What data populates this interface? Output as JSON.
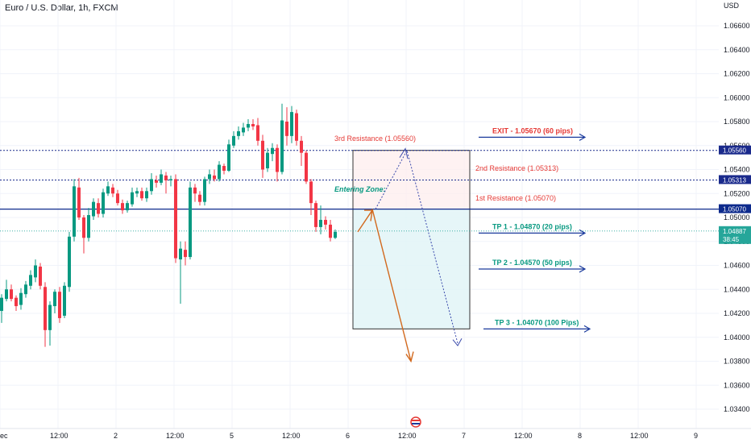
{
  "header": {
    "symbol_title": "Euro / U.S. Dollar, 1h, FXCM",
    "currency": "USD"
  },
  "chart_data": {
    "type": "candlestick",
    "ylim": [
      1.033,
      1.067
    ],
    "y_ticks": [
      "1.06600",
      "1.06400",
      "1.06200",
      "1.06000",
      "1.05800",
      "1.05600",
      "1.05400",
      "1.05200",
      "1.05000",
      "1.04800",
      "1.04600",
      "1.04400",
      "1.04200",
      "1.04000",
      "1.03800",
      "1.03600",
      "1.03400"
    ],
    "x_ticks": [
      "ec",
      "12:00",
      "2",
      "12:00",
      "5",
      "12:00",
      "6",
      "12:00",
      "7",
      "12:00",
      "8",
      "12:00",
      "9"
    ],
    "candles": [
      [
        1.0422,
        1.0433,
        1.0412,
        1.0436
      ],
      [
        1.0432,
        1.044,
        1.043,
        1.0448
      ],
      [
        1.044,
        1.0432,
        1.043,
        1.0444
      ],
      [
        1.0433,
        1.0426,
        1.0422,
        1.0435
      ],
      [
        1.0427,
        1.0437,
        1.0423,
        1.0441
      ],
      [
        1.0436,
        1.0444,
        1.0433,
        1.0447
      ],
      [
        1.0443,
        1.0452,
        1.044,
        1.0456
      ],
      [
        1.045,
        1.046,
        1.0446,
        1.0465
      ],
      [
        1.0459,
        1.0443,
        1.044,
        1.0462
      ],
      [
        1.0442,
        1.0406,
        1.0392,
        1.0446
      ],
      [
        1.0406,
        1.0427,
        1.0393,
        1.043
      ],
      [
        1.0426,
        1.0438,
        1.042,
        1.044
      ],
      [
        1.0438,
        1.0416,
        1.0412,
        1.0442
      ],
      [
        1.0418,
        1.0443,
        1.0416,
        1.0446
      ],
      [
        1.0442,
        1.0484,
        1.0438,
        1.0488
      ],
      [
        1.0484,
        1.0526,
        1.048,
        1.0532
      ],
      [
        1.0525,
        1.05,
        1.0498,
        1.0533
      ],
      [
        1.05,
        1.0483,
        1.047,
        1.0502
      ],
      [
        1.0483,
        1.0502,
        1.048,
        1.0508
      ],
      [
        1.0501,
        1.0513,
        1.0498,
        1.0516
      ],
      [
        1.0512,
        1.0503,
        1.05,
        1.0516
      ],
      [
        1.0503,
        1.0521,
        1.05,
        1.0524
      ],
      [
        1.052,
        1.0526,
        1.0518,
        1.053
      ],
      [
        1.0525,
        1.052,
        1.0517,
        1.0528
      ],
      [
        1.052,
        1.0512,
        1.051,
        1.0523
      ],
      [
        1.0512,
        1.0506,
        1.0503,
        1.0515
      ],
      [
        1.0506,
        1.0512,
        1.0504,
        1.0514
      ],
      [
        1.0511,
        1.0521,
        1.0509,
        1.0525
      ],
      [
        1.052,
        1.0522,
        1.0517,
        1.0525
      ],
      [
        1.0522,
        1.0516,
        1.0514,
        1.0525
      ],
      [
        1.0516,
        1.0522,
        1.0513,
        1.0525
      ],
      [
        1.0522,
        1.0532,
        1.0519,
        1.0537
      ],
      [
        1.0531,
        1.0529,
        1.0525,
        1.0535
      ],
      [
        1.0529,
        1.0536,
        1.0527,
        1.054
      ],
      [
        1.0535,
        1.0531,
        1.052,
        1.0538
      ],
      [
        1.0531,
        1.0532,
        1.0526,
        1.0535
      ],
      [
        1.0532,
        1.0466,
        1.0462,
        1.0536
      ],
      [
        1.0465,
        1.0474,
        1.0428,
        1.048
      ],
      [
        1.0473,
        1.0467,
        1.046,
        1.048
      ],
      [
        1.0467,
        1.0525,
        1.0465,
        1.053
      ],
      [
        1.0525,
        1.052,
        1.0513,
        1.0528
      ],
      [
        1.0519,
        1.0513,
        1.051,
        1.0522
      ],
      [
        1.0513,
        1.0532,
        1.051,
        1.0534
      ],
      [
        1.0532,
        1.0536,
        1.0528,
        1.054
      ],
      [
        1.0535,
        1.0532,
        1.053,
        1.054
      ],
      [
        1.0532,
        1.0544,
        1.053,
        1.0547
      ],
      [
        1.0543,
        1.0539,
        1.0536,
        1.0545
      ],
      [
        1.0539,
        1.0561,
        1.0538,
        1.0565
      ],
      [
        1.056,
        1.0568,
        1.0558,
        1.0572
      ],
      [
        1.0568,
        1.0572,
        1.0565,
        1.0576
      ],
      [
        1.0571,
        1.0575,
        1.0568,
        1.0579
      ],
      [
        1.0575,
        1.0578,
        1.0572,
        1.0582
      ],
      [
        1.0578,
        1.0576,
        1.0573,
        1.0582
      ],
      [
        1.0577,
        1.0564,
        1.056,
        1.0583
      ],
      [
        1.0564,
        1.054,
        1.0533,
        1.0569
      ],
      [
        1.0541,
        1.0554,
        1.0538,
        1.0558
      ],
      [
        1.0553,
        1.0558,
        1.0547,
        1.0562
      ],
      [
        1.0558,
        1.0538,
        1.053,
        1.0561
      ],
      [
        1.0538,
        1.0581,
        1.0536,
        1.0595
      ],
      [
        1.058,
        1.0568,
        1.056,
        1.0592
      ],
      [
        1.0568,
        1.0588,
        1.0562,
        1.0593
      ],
      [
        1.0587,
        1.0564,
        1.056,
        1.059
      ],
      [
        1.0564,
        1.0554,
        1.0543,
        1.0568
      ],
      [
        1.0554,
        1.053,
        1.0528,
        1.0556
      ],
      [
        1.053,
        1.0512,
        1.0502,
        1.0532
      ],
      [
        1.0512,
        1.0492,
        1.0488,
        1.0514
      ],
      [
        1.0492,
        1.0498,
        1.0486,
        1.051
      ],
      [
        1.0498,
        1.0494,
        1.049,
        1.0501
      ],
      [
        1.0494,
        1.0483,
        1.048,
        1.0498
      ],
      [
        1.0483,
        1.0488,
        1.0482,
        1.049
      ]
    ],
    "levels": [
      {
        "price": 1.0556,
        "label": "1.05560",
        "style": "dotted",
        "color": "#1a2a8c"
      },
      {
        "price": 1.05313,
        "label": "1.05313",
        "style": "dotted",
        "color": "#1a2a8c"
      },
      {
        "price": 1.0507,
        "label": "1.05070",
        "style": "solid",
        "color": "#0d2a8c"
      },
      {
        "price": 1.04887,
        "label": "1.04887",
        "style": "current",
        "color": "#26a69a",
        "countdown": "38:45"
      }
    ],
    "resistance_labels": [
      {
        "text": "3rd Resistance (1.05560)",
        "price": 1.0564
      },
      {
        "text": "2nd Resistance (1.05313)",
        "price": 1.0539
      },
      {
        "text": "1st Resistance (1.05070)",
        "price": 1.0514
      }
    ],
    "entering_zone": "Entering Zone:",
    "targets": [
      {
        "text": "EXIT - 1.05670 (60 pips)",
        "price": 1.0567,
        "color": "#e53935"
      },
      {
        "text": "TP 1 - 1.04870 (20 pips)",
        "price": 1.0487,
        "color": "#089981"
      },
      {
        "text": "TP 2 - 1.04570 (50 pips)",
        "price": 1.0457,
        "color": "#089981"
      },
      {
        "text": "TP 3 - 1.04070 (100 Pips)",
        "price": 1.0407,
        "color": "#089981"
      }
    ],
    "position_box": {
      "top": 1.0556,
      "entry": 1.0507,
      "bottom": 1.0407
    },
    "colors": {
      "up": "#089981",
      "down": "#f23645",
      "grid": "#f0f3fa",
      "line_blue": "#1a3a9c",
      "arrow_orange": "#d2691e"
    }
  }
}
